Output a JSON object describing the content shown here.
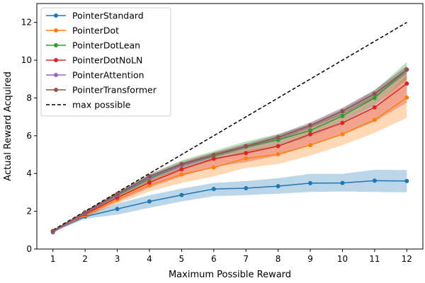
{
  "chart_data": {
    "type": "line",
    "title": "",
    "xlabel": "Maximum Possible Reward",
    "ylabel": "Actual Reward Acquired",
    "x": [
      1,
      2,
      3,
      4,
      5,
      6,
      7,
      8,
      9,
      10,
      11,
      12
    ],
    "xlim": [
      0.5,
      12.5
    ],
    "ylim": [
      0,
      13
    ],
    "xticks": [
      "1",
      "2",
      "3",
      "4",
      "5",
      "6",
      "7",
      "8",
      "9",
      "10",
      "11",
      "12"
    ],
    "yticks": [
      0,
      2,
      4,
      6,
      8,
      10,
      12
    ],
    "grid": false,
    "legend_position": "upper-left",
    "series": [
      {
        "name": "PointerStandard",
        "color": "#1f77b4",
        "values": [
          0.95,
          1.72,
          2.12,
          2.52,
          2.86,
          3.18,
          3.22,
          3.33,
          3.49,
          3.5,
          3.62,
          3.6
        ],
        "band_low": [
          0.9,
          1.6,
          1.82,
          2.18,
          2.52,
          2.8,
          2.85,
          2.93,
          3.02,
          3.05,
          3.02,
          3.0
        ],
        "band_high": [
          1.0,
          1.85,
          2.4,
          2.85,
          3.2,
          3.5,
          3.6,
          3.75,
          3.98,
          3.98,
          4.2,
          4.18
        ]
      },
      {
        "name": "PointerDot",
        "color": "#ff7f0e",
        "values": [
          0.95,
          1.78,
          2.62,
          3.38,
          3.95,
          4.32,
          4.8,
          5.02,
          5.5,
          6.08,
          6.84,
          8.02
        ],
        "band_low": [
          0.9,
          1.65,
          2.4,
          3.05,
          3.5,
          3.85,
          4.3,
          4.5,
          4.95,
          5.5,
          6.15,
          6.95
        ],
        "band_high": [
          1.0,
          1.95,
          2.85,
          3.65,
          4.3,
          4.75,
          5.2,
          5.5,
          6.0,
          6.7,
          7.5,
          9.2
        ]
      },
      {
        "name": "PointerDotLean",
        "color": "#2ca02c",
        "values": [
          0.95,
          1.9,
          2.85,
          3.72,
          4.45,
          4.95,
          5.42,
          5.78,
          6.28,
          7.05,
          8.0,
          9.5
        ],
        "band_low": [
          0.9,
          1.8,
          2.7,
          3.5,
          4.2,
          4.7,
          5.1,
          5.45,
          5.95,
          6.7,
          7.6,
          9.0
        ],
        "band_high": [
          1.0,
          2.0,
          3.0,
          3.95,
          4.7,
          5.2,
          5.7,
          6.1,
          6.6,
          7.4,
          8.4,
          9.9
        ]
      },
      {
        "name": "PointerDotNoLN",
        "color": "#d62728",
        "values": [
          0.95,
          1.85,
          2.72,
          3.52,
          4.22,
          4.78,
          5.08,
          5.45,
          6.08,
          6.68,
          7.5,
          8.76
        ],
        "band_low": [
          0.9,
          1.7,
          2.5,
          3.25,
          3.85,
          4.35,
          4.6,
          4.95,
          5.5,
          6.05,
          6.75,
          7.75
        ],
        "band_high": [
          1.0,
          2.0,
          2.95,
          3.8,
          4.55,
          5.1,
          5.45,
          5.9,
          6.55,
          7.2,
          8.15,
          9.5
        ]
      },
      {
        "name": "PointerAttention",
        "color": "#9467bd",
        "values": [
          0.88,
          1.9,
          2.88,
          3.78,
          4.45,
          4.98,
          5.45,
          5.9,
          6.55,
          7.3,
          8.22,
          9.5
        ],
        "band_low": [
          0.85,
          1.82,
          2.78,
          3.65,
          4.32,
          4.85,
          5.32,
          5.75,
          6.4,
          7.12,
          8.02,
          9.3
        ],
        "band_high": [
          0.92,
          1.98,
          2.98,
          3.9,
          4.58,
          5.1,
          5.58,
          6.05,
          6.7,
          7.48,
          8.42,
          9.7
        ]
      },
      {
        "name": "PointerTransformer",
        "color": "#8c564b",
        "values": [
          0.95,
          1.95,
          2.92,
          3.85,
          4.5,
          4.98,
          5.45,
          5.92,
          6.55,
          7.3,
          8.22,
          9.5
        ],
        "band_low": [
          0.9,
          1.88,
          2.82,
          3.72,
          4.36,
          4.85,
          5.32,
          5.78,
          6.4,
          7.12,
          8.02,
          9.3
        ],
        "band_high": [
          1.0,
          2.02,
          3.02,
          3.98,
          4.64,
          5.12,
          5.58,
          6.06,
          6.7,
          7.48,
          8.42,
          9.7
        ]
      }
    ],
    "reference_line": {
      "name": "max possible",
      "color": "#000000",
      "style": "dashed",
      "x": [
        1,
        12
      ],
      "y": [
        1,
        12
      ]
    }
  }
}
